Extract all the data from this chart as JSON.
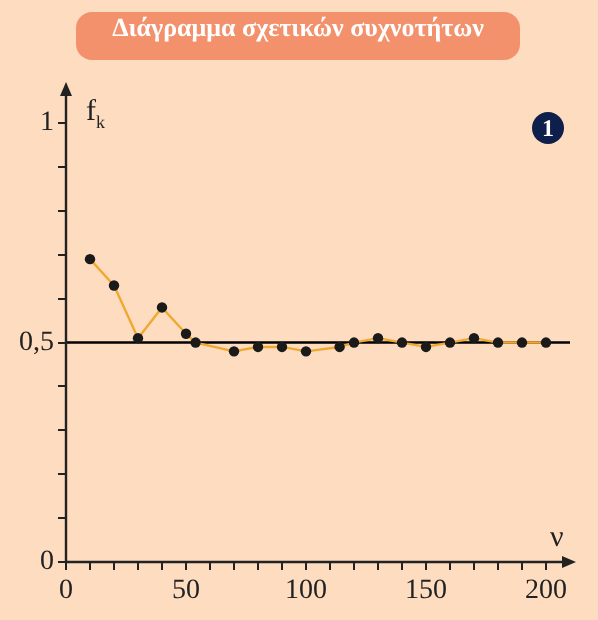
{
  "chart_data": {
    "type": "line",
    "title": "Διάγραμμα σχετικών συχνοτήτων",
    "xlabel": "ν",
    "ylabel": "f$_{k}$",
    "annotations": [
      "1"
    ],
    "x": [
      10,
      20,
      30,
      40,
      50,
      54,
      70,
      80,
      90,
      100,
      114,
      120,
      130,
      140,
      150,
      160,
      170,
      180,
      190,
      200
    ],
    "series": [
      {
        "color": "#f0a830",
        "values": [
          0.69,
          0.63,
          0.51,
          0.58,
          0.52,
          0.5,
          0.48,
          0.49,
          0.49,
          0.48,
          0.49,
          0.5,
          0.51,
          0.5,
          0.49,
          0.5,
          0.51,
          0.5,
          0.5,
          0.5
        ]
      }
    ],
    "marker": "circle",
    "grid": false,
    "legend": false,
    "xlim": [
      0,
      210
    ],
    "ylim": [
      0,
      1.08
    ],
    "xticks": [
      0,
      {
        "value": 10,
        "label": null
      },
      {
        "value": 20,
        "label": null
      },
      {
        "value": 30,
        "label": null
      },
      {
        "value": 40,
        "label": null
      },
      50,
      {
        "value": 60,
        "label": null
      },
      {
        "value": 70,
        "label": null
      },
      {
        "value": 80,
        "label": null
      },
      {
        "value": 90,
        "label": null
      },
      100,
      {
        "value": 110,
        "label": null
      },
      {
        "value": 120,
        "label": null
      },
      {
        "value": 130,
        "label": null
      },
      {
        "value": 140,
        "label": null
      },
      150,
      {
        "value": 160,
        "label": null
      },
      {
        "value": 170,
        "label": null
      },
      {
        "value": 180,
        "label": null
      },
      {
        "value": 190,
        "label": null
      },
      200
    ],
    "yticks": [
      0,
      {
        "value": 0.1,
        "label": null
      },
      {
        "value": 0.2,
        "label": null
      },
      {
        "value": 0.3,
        "label": null
      },
      {
        "value": 0.4,
        "label": null
      },
      {
        "value": 0.5,
        "label": "0,5"
      },
      {
        "value": 0.6,
        "label": null
      },
      {
        "value": 0.7,
        "label": null
      },
      {
        "value": 0.8,
        "label": null
      },
      {
        "value": 0.9,
        "label": null
      },
      1
    ],
    "ref_lines": [
      {
        "axis": "y",
        "value": 0.5,
        "color": "#000000"
      }
    ]
  }
}
